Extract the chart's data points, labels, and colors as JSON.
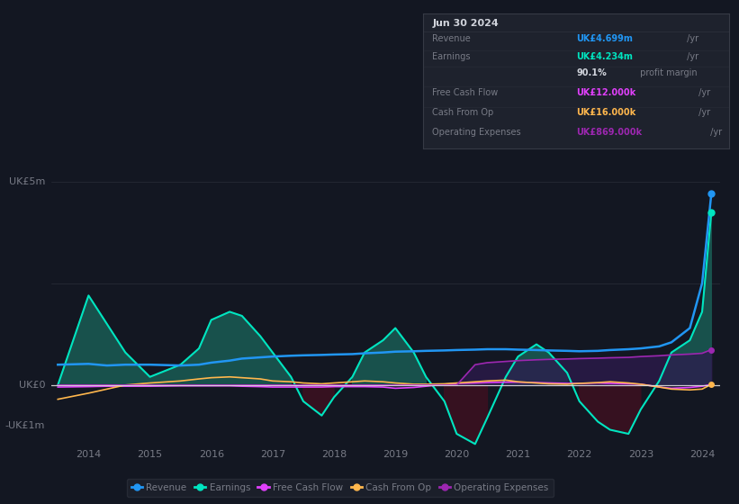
{
  "bg_color": "#131722",
  "plot_bg_color": "#131722",
  "grid_color": "#2a2e39",
  "text_color": "#787b86",
  "title_color": "#d1d4dc",
  "zero_line_color": "#e0e0e0",
  "years": [
    2013.5,
    2014.0,
    2014.3,
    2014.6,
    2015.0,
    2015.5,
    2015.8,
    2016.0,
    2016.3,
    2016.5,
    2016.8,
    2017.0,
    2017.3,
    2017.5,
    2017.8,
    2018.0,
    2018.3,
    2018.5,
    2018.8,
    2019.0,
    2019.3,
    2019.5,
    2019.8,
    2020.0,
    2020.3,
    2020.5,
    2020.8,
    2021.0,
    2021.3,
    2021.5,
    2021.8,
    2022.0,
    2022.3,
    2022.5,
    2022.8,
    2023.0,
    2023.3,
    2023.5,
    2023.8,
    2024.0,
    2024.15
  ],
  "revenue": [
    0.5,
    0.52,
    0.48,
    0.5,
    0.5,
    0.48,
    0.5,
    0.55,
    0.6,
    0.65,
    0.68,
    0.7,
    0.72,
    0.73,
    0.74,
    0.75,
    0.76,
    0.78,
    0.8,
    0.82,
    0.83,
    0.84,
    0.85,
    0.86,
    0.87,
    0.88,
    0.88,
    0.87,
    0.86,
    0.85,
    0.84,
    0.83,
    0.84,
    0.86,
    0.88,
    0.9,
    0.95,
    1.05,
    1.4,
    2.5,
    4.699
  ],
  "earnings": [
    0.0,
    2.2,
    1.5,
    0.8,
    0.2,
    0.5,
    0.9,
    1.6,
    1.8,
    1.7,
    1.2,
    0.8,
    0.2,
    -0.4,
    -0.75,
    -0.3,
    0.2,
    0.8,
    1.1,
    1.4,
    0.8,
    0.2,
    -0.4,
    -1.2,
    -1.45,
    -0.8,
    0.2,
    0.7,
    1.0,
    0.8,
    0.3,
    -0.4,
    -0.9,
    -1.1,
    -1.2,
    -0.6,
    0.1,
    0.8,
    1.1,
    1.8,
    4.234
  ],
  "free_cash_flow": [
    -0.05,
    -0.04,
    -0.03,
    -0.03,
    -0.03,
    -0.02,
    -0.02,
    -0.02,
    -0.02,
    -0.03,
    -0.04,
    -0.05,
    -0.05,
    -0.05,
    -0.05,
    -0.04,
    -0.04,
    -0.04,
    -0.05,
    -0.08,
    -0.06,
    -0.03,
    0.02,
    0.04,
    0.05,
    0.06,
    0.07,
    0.07,
    0.06,
    0.05,
    0.04,
    0.04,
    0.05,
    0.04,
    0.03,
    0.02,
    -0.05,
    -0.08,
    -0.06,
    -0.03,
    0.012
  ],
  "cash_from_op": [
    -0.35,
    -0.2,
    -0.1,
    0.0,
    0.05,
    0.1,
    0.15,
    0.18,
    0.2,
    0.18,
    0.15,
    0.1,
    0.08,
    0.05,
    0.03,
    0.05,
    0.08,
    0.1,
    0.08,
    0.05,
    0.02,
    0.02,
    0.03,
    0.05,
    0.08,
    0.1,
    0.12,
    0.08,
    0.05,
    0.03,
    0.02,
    0.04,
    0.06,
    0.08,
    0.05,
    0.02,
    -0.05,
    -0.1,
    -0.12,
    -0.1,
    0.016
  ],
  "operating_expenses": [
    0.0,
    0.0,
    0.0,
    0.0,
    0.0,
    0.0,
    0.0,
    0.0,
    0.0,
    0.0,
    0.0,
    0.0,
    0.0,
    0.0,
    0.0,
    0.0,
    0.0,
    0.0,
    0.0,
    0.0,
    0.0,
    0.0,
    0.0,
    0.0,
    0.5,
    0.55,
    0.58,
    0.6,
    0.62,
    0.63,
    0.64,
    0.65,
    0.66,
    0.67,
    0.68,
    0.7,
    0.72,
    0.74,
    0.76,
    0.78,
    0.869
  ],
  "revenue_color": "#2196f3",
  "earnings_color": "#00e5c0",
  "earnings_fill_pos_color": "#1a5c54",
  "earnings_fill_neg_color": "#3d1020",
  "free_cash_flow_color": "#e040fb",
  "cash_from_op_color": "#ffb74d",
  "operating_expenses_color": "#9c27b0",
  "operating_expenses_fill_color": "#2d1b4e",
  "ylim": [
    -1.5,
    5.5
  ],
  "xlim": [
    2013.4,
    2024.3
  ],
  "xtick_years": [
    2014,
    2015,
    2016,
    2017,
    2018,
    2019,
    2020,
    2021,
    2022,
    2023,
    2024
  ],
  "ylabel_5m": "UK£5m",
  "ylabel_0": "UK£0",
  "ylabel_neg1m": "-UK£1m",
  "info_box": {
    "title": "Jun 30 2024",
    "title_color": "#d1d4dc",
    "bg_color": "#1e222d",
    "border_color": "#363a45",
    "rows": [
      {
        "label": "Revenue",
        "value": "UK£4.699m",
        "value_color": "#2196f3",
        "suffix": " /yr"
      },
      {
        "label": "Earnings",
        "value": "UK£4.234m",
        "value_color": "#00e5c0",
        "suffix": " /yr"
      },
      {
        "label": "",
        "value": "90.1%",
        "value_color": "#d1d4dc",
        "suffix": " profit margin"
      },
      {
        "label": "Free Cash Flow",
        "value": "UK£12.000k",
        "value_color": "#e040fb",
        "suffix": " /yr"
      },
      {
        "label": "Cash From Op",
        "value": "UK£16.000k",
        "value_color": "#ffb74d",
        "suffix": " /yr"
      },
      {
        "label": "Operating Expenses",
        "value": "UK£869.000k",
        "value_color": "#9c27b0",
        "suffix": " /yr"
      }
    ]
  },
  "legend": [
    {
      "label": "Revenue",
      "color": "#2196f3"
    },
    {
      "label": "Earnings",
      "color": "#00e5c0"
    },
    {
      "label": "Free Cash Flow",
      "color": "#e040fb"
    },
    {
      "label": "Cash From Op",
      "color": "#ffb74d"
    },
    {
      "label": "Operating Expenses",
      "color": "#9c27b0"
    }
  ]
}
